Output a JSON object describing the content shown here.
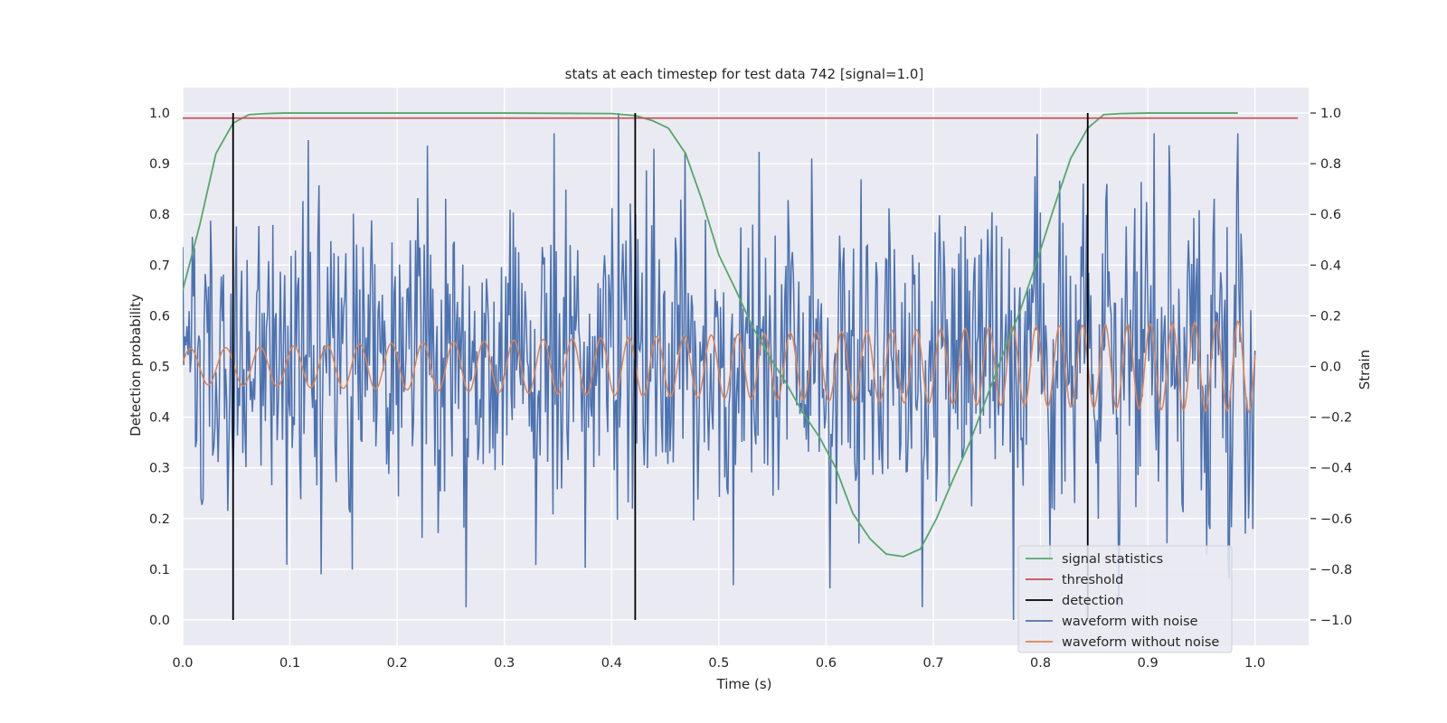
{
  "chart_data": {
    "type": "line",
    "title": "stats at each timestep for test data 742 [signal=1.0]",
    "xlabel": "Time (s)",
    "ylabel_left": "Detection probability",
    "ylabel_right": "Strain",
    "xlim": [
      0.0,
      1.05
    ],
    "ylim_left": [
      -0.05,
      1.05
    ],
    "ylim_right": [
      -1.1,
      1.1
    ],
    "x_ticks": [
      "0.0",
      "0.1",
      "0.2",
      "0.3",
      "0.4",
      "0.5",
      "0.6",
      "0.7",
      "0.8",
      "0.9",
      "1.0"
    ],
    "y_ticks_left": [
      "0.0",
      "0.1",
      "0.2",
      "0.3",
      "0.4",
      "0.5",
      "0.6",
      "0.7",
      "0.8",
      "0.9",
      "1.0"
    ],
    "y_ticks_right": [
      "−1.0",
      "−0.8",
      "−0.6",
      "−0.4",
      "−0.2",
      "0.0",
      "0.2",
      "0.4",
      "0.6",
      "0.8",
      "1.0"
    ],
    "grid": true,
    "legend_position": "lower-right",
    "colors": {
      "signal_statistics": "#55a868",
      "threshold": "#c44e52",
      "detection": "#000000",
      "waveform_noise": "#4c72b0",
      "waveform_clean": "#dd8452",
      "plot_background": "#eaeaf2",
      "grid": "#ffffff"
    },
    "series": [
      {
        "name": "signal statistics",
        "axis": "left",
        "x": [
          0.0,
          0.016,
          0.031,
          0.047,
          0.062,
          0.078,
          0.094,
          0.2,
          0.3,
          0.4,
          0.422,
          0.438,
          0.453,
          0.469,
          0.484,
          0.5,
          0.516,
          0.531,
          0.547,
          0.562,
          0.578,
          0.594,
          0.609,
          0.625,
          0.641,
          0.656,
          0.672,
          0.688,
          0.703,
          0.719,
          0.734,
          0.75,
          0.766,
          0.781,
          0.797,
          0.812,
          0.828,
          0.844,
          0.859,
          0.875,
          0.9,
          0.95,
          0.984
        ],
        "y": [
          0.65,
          0.78,
          0.92,
          0.98,
          0.997,
          0.999,
          1.0,
          1.0,
          1.0,
          0.999,
          0.995,
          0.985,
          0.97,
          0.92,
          0.83,
          0.72,
          0.65,
          0.58,
          0.52,
          0.47,
          0.41,
          0.36,
          0.3,
          0.21,
          0.16,
          0.13,
          0.125,
          0.14,
          0.2,
          0.28,
          0.35,
          0.44,
          0.53,
          0.61,
          0.71,
          0.81,
          0.91,
          0.97,
          0.997,
          0.999,
          1.0,
          1.0,
          1.0
        ]
      },
      {
        "name": "threshold",
        "axis": "left",
        "x": [
          0.0,
          1.04
        ],
        "y": [
          0.99,
          0.99
        ]
      },
      {
        "name": "detection",
        "axis": "left",
        "vertical_lines_x": [
          0.047,
          0.422,
          0.844
        ],
        "y_range": [
          0.0,
          1.0
        ]
      },
      {
        "name": "waveform with noise",
        "axis": "right",
        "x_range": [
          0.0,
          1.0
        ],
        "approx_amplitude_range": [
          -1.0,
          1.0
        ],
        "notable_peaks": [
          {
            "x": 0.406,
            "y": 1.0
          },
          {
            "x": 0.775,
            "y": -1.0
          },
          {
            "x": 0.129,
            "y": -0.82
          },
          {
            "x": 0.795,
            "y": 0.75
          }
        ]
      },
      {
        "name": "waveform without noise",
        "axis": "right",
        "x_range": [
          0.0,
          1.0
        ],
        "amplitude_start": 0.07,
        "amplitude_end": 0.18,
        "frequency_start_hz": 30,
        "frequency_end_hz": 50
      }
    ],
    "legend": [
      "signal statistics",
      "threshold",
      "detection",
      "waveform with noise",
      "waveform without noise"
    ]
  }
}
